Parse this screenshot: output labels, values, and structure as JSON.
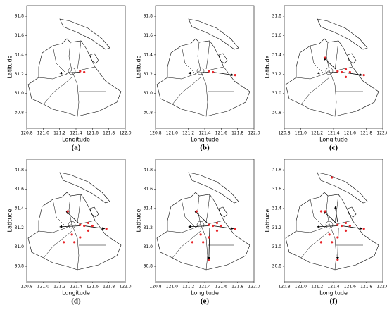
{
  "chart_data": [
    {
      "type": "scatter",
      "caption": "(a)",
      "x_label": "Longitude",
      "y_label": "Latitude",
      "color": "#e8262a",
      "x": [
        121.45,
        121.5
      ],
      "y": [
        31.23,
        31.22
      ],
      "arrows": [
        [
          121.45,
          31.22,
          121.2,
          31.21
        ]
      ],
      "xlim": [
        120.8,
        122.0
      ],
      "ylim": [
        30.64,
        31.91
      ],
      "xticks": [
        120.8,
        {
          "value": 121.0,
          "label": "121.0"
        },
        121.2,
        121.4,
        121.6,
        121.8,
        {
          "value": 122.0,
          "label": "122.0"
        }
      ],
      "yticks": [
        30.8,
        {
          "value": 31.0,
          "label": "31.0"
        },
        31.2,
        31.4,
        31.6,
        31.8
      ]
    },
    {
      "type": "scatter",
      "caption": "(b)",
      "x_label": "Longitude",
      "y_label": "Latitude",
      "color": "#e8262a",
      "x": [
        121.45,
        121.5,
        121.77
      ],
      "y": [
        31.23,
        31.22,
        31.19
      ],
      "arrows": [
        [
          121.45,
          31.22,
          121.2,
          31.21
        ],
        [
          121.5,
          31.22,
          121.75,
          31.19
        ]
      ],
      "xlim": [
        120.8,
        122.0
      ],
      "ylim": [
        30.64,
        31.91
      ],
      "xticks": [
        120.8,
        {
          "value": 121.0,
          "label": "121.0"
        },
        121.2,
        121.4,
        121.6,
        121.8,
        {
          "value": 122.0,
          "label": "122.0"
        }
      ],
      "yticks": [
        30.8,
        {
          "value": 31.0,
          "label": "31.0"
        },
        31.2,
        31.4,
        31.6,
        31.8
      ]
    },
    {
      "type": "scatter",
      "caption": "(c)",
      "x_label": "Longitude",
      "y_label": "Latitude",
      "color": "#e8262a",
      "x": [
        121.45,
        121.5,
        121.77,
        121.3,
        121.55,
        121.6,
        121.55
      ],
      "y": [
        31.23,
        31.22,
        31.19,
        31.37,
        31.25,
        31.22,
        31.17
      ],
      "arrows": [
        [
          121.45,
          31.22,
          121.2,
          31.21
        ],
        [
          121.5,
          31.22,
          121.75,
          31.19
        ],
        [
          121.43,
          31.25,
          121.28,
          31.37
        ]
      ],
      "xlim": [
        120.8,
        122.0
      ],
      "ylim": [
        30.64,
        31.91
      ],
      "xticks": [
        120.8,
        {
          "value": 121.0,
          "label": "121.0"
        },
        121.2,
        121.4,
        121.6,
        121.8,
        {
          "value": 122.0,
          "label": "122.0"
        }
      ],
      "yticks": [
        30.8,
        {
          "value": 31.0,
          "label": "31.0"
        },
        31.2,
        31.4,
        31.6,
        31.8
      ]
    },
    {
      "type": "scatter",
      "caption": "(d)",
      "x_label": "Longitude",
      "y_label": "Latitude",
      "color": "#e8262a",
      "x": [
        121.45,
        121.5,
        121.77,
        121.3,
        121.55,
        121.6,
        121.55,
        121.25,
        121.38,
        121.45,
        121.35
      ],
      "y": [
        31.23,
        31.22,
        31.19,
        31.37,
        31.25,
        31.22,
        31.17,
        31.05,
        31.05,
        31.1,
        31.13
      ],
      "arrows": [
        [
          121.45,
          31.22,
          121.2,
          31.21
        ],
        [
          121.5,
          31.22,
          121.75,
          31.19
        ],
        [
          121.43,
          31.25,
          121.28,
          31.37
        ]
      ],
      "xlim": [
        120.8,
        122.0
      ],
      "ylim": [
        30.64,
        31.91
      ],
      "xticks": [
        120.8,
        {
          "value": 121.0,
          "label": "121.0"
        },
        121.2,
        121.4,
        121.6,
        121.8,
        {
          "value": 122.0,
          "label": "122.0"
        }
      ],
      "yticks": [
        30.8,
        {
          "value": 31.0,
          "label": "31.0"
        },
        31.2,
        31.4,
        31.6,
        31.8
      ]
    },
    {
      "type": "scatter",
      "caption": "(e)",
      "x_label": "Longitude",
      "y_label": "Latitude",
      "color": "#e8262a",
      "x": [
        121.45,
        121.5,
        121.77,
        121.3,
        121.55,
        121.6,
        121.55,
        121.25,
        121.38,
        121.45,
        121.35,
        121.45
      ],
      "y": [
        31.23,
        31.22,
        31.19,
        31.37,
        31.25,
        31.22,
        31.17,
        31.05,
        31.05,
        31.1,
        31.13,
        30.87
      ],
      "arrows": [
        [
          121.45,
          31.22,
          121.2,
          31.21
        ],
        [
          121.5,
          31.22,
          121.75,
          31.19
        ],
        [
          121.43,
          31.25,
          121.28,
          31.37
        ],
        [
          121.46,
          31.2,
          121.45,
          30.87
        ]
      ],
      "xlim": [
        120.8,
        122.0
      ],
      "ylim": [
        30.64,
        31.91
      ],
      "xticks": [
        120.8,
        {
          "value": 121.0,
          "label": "121.0"
        },
        121.2,
        121.4,
        121.6,
        121.8,
        {
          "value": 122.0,
          "label": "122.0"
        }
      ],
      "yticks": [
        30.8,
        {
          "value": 31.0,
          "label": "31.0"
        },
        31.2,
        31.4,
        31.6,
        31.8
      ]
    },
    {
      "type": "scatter",
      "caption": "(f)",
      "x_label": "Longitude",
      "y_label": "Latitude",
      "color": "#e8262a",
      "x": [
        121.45,
        121.5,
        121.77,
        121.3,
        121.55,
        121.6,
        121.55,
        121.25,
        121.38,
        121.45,
        121.35,
        121.45,
        121.38,
        121.25,
        121.25
      ],
      "y": [
        31.23,
        31.22,
        31.19,
        31.37,
        31.25,
        31.22,
        31.17,
        31.05,
        31.05,
        31.1,
        31.13,
        30.87,
        31.72,
        31.37,
        31.05
      ],
      "arrows": [
        [
          121.45,
          31.22,
          121.2,
          31.21
        ],
        [
          121.5,
          31.22,
          121.75,
          31.19
        ],
        [
          121.43,
          31.25,
          121.28,
          31.37
        ],
        [
          121.46,
          31.2,
          121.45,
          30.87
        ],
        [
          121.45,
          31.26,
          121.42,
          31.42
        ]
      ],
      "xlim": [
        120.8,
        122.0
      ],
      "ylim": [
        30.64,
        31.91
      ],
      "xticks": [
        120.8,
        {
          "value": 121.0,
          "label": "121.0"
        },
        121.2,
        121.4,
        121.6,
        121.8,
        {
          "value": 122.0,
          "label": "122.0"
        }
      ],
      "yticks": [
        30.8,
        {
          "value": 31.0,
          "label": "31.0"
        },
        31.2,
        31.4,
        31.6,
        31.8
      ]
    }
  ]
}
